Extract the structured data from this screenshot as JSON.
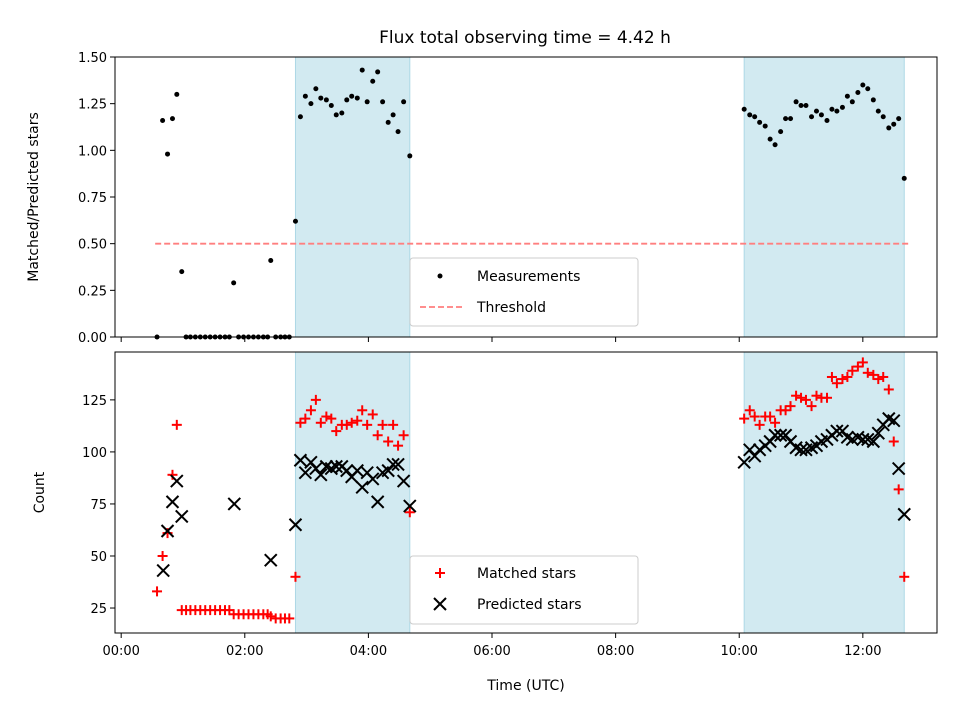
{
  "chart_data": [
    {
      "type": "scatter",
      "title": "Flux total observing time = 4.42 h",
      "ylabel": "Matched/Predicted stars",
      "ylim": [
        0,
        1.5
      ],
      "yticks": [
        0.0,
        0.25,
        0.5,
        0.75,
        1.0,
        1.25,
        1.5
      ],
      "yticklabels": [
        "0.00",
        "0.25",
        "0.50",
        "0.75",
        "1.00",
        "1.25",
        "1.50"
      ],
      "legend_position": "bottom-center",
      "threshold": {
        "value": 0.5,
        "x_start": 0.55,
        "x_end": 12.75,
        "color": "#ff7f7f",
        "name": "Threshold"
      },
      "highlight_color": "#add8e6",
      "highlights": [
        [
          2.82,
          4.67
        ],
        [
          10.08,
          12.67
        ]
      ],
      "series": [
        {
          "name": "Measurements",
          "color": "#000000",
          "marker": "dot",
          "x": [
            0.58,
            0.67,
            0.75,
            0.83,
            0.9,
            0.98,
            1.05,
            1.12,
            1.2,
            1.28,
            1.36,
            1.44,
            1.52,
            1.6,
            1.68,
            1.75,
            1.82,
            1.9,
            1.98,
            2.06,
            2.14,
            2.22,
            2.3,
            2.37,
            2.42,
            2.5,
            2.58,
            2.65,
            2.72,
            2.82,
            2.9,
            2.98,
            3.07,
            3.15,
            3.23,
            3.32,
            3.4,
            3.48,
            3.57,
            3.65,
            3.73,
            3.82,
            3.9,
            3.98,
            4.07,
            4.15,
            4.23,
            4.32,
            4.4,
            4.48,
            4.57,
            4.67,
            10.08,
            10.17,
            10.25,
            10.33,
            10.42,
            10.5,
            10.58,
            10.67,
            10.75,
            10.83,
            10.92,
            11.0,
            11.08,
            11.17,
            11.25,
            11.33,
            11.42,
            11.5,
            11.58,
            11.67,
            11.75,
            11.83,
            11.92,
            12.0,
            12.08,
            12.17,
            12.25,
            12.33,
            12.42,
            12.5,
            12.58,
            12.67
          ],
          "y": [
            0.0,
            1.16,
            0.98,
            1.17,
            1.3,
            0.35,
            0.0,
            0.0,
            0.0,
            0.0,
            0.0,
            0.0,
            0.0,
            0.0,
            0.0,
            0.0,
            0.29,
            0.0,
            0.0,
            0.0,
            0.0,
            0.0,
            0.0,
            0.0,
            0.41,
            0.0,
            0.0,
            0.0,
            0.0,
            0.62,
            1.18,
            1.29,
            1.25,
            1.33,
            1.28,
            1.27,
            1.24,
            1.19,
            1.2,
            1.27,
            1.29,
            1.28,
            1.43,
            1.26,
            1.37,
            1.42,
            1.26,
            1.15,
            1.19,
            1.1,
            1.26,
            0.97,
            1.22,
            1.19,
            1.18,
            1.15,
            1.13,
            1.06,
            1.03,
            1.1,
            1.17,
            1.17,
            1.26,
            1.24,
            1.24,
            1.18,
            1.21,
            1.19,
            1.16,
            1.22,
            1.21,
            1.23,
            1.29,
            1.26,
            1.31,
            1.35,
            1.33,
            1.27,
            1.21,
            1.18,
            1.12,
            1.14,
            1.17,
            0.85
          ]
        }
      ]
    },
    {
      "type": "scatter",
      "ylabel": "Count",
      "xlabel": "Time (UTC)",
      "ylim": [
        13,
        148
      ],
      "yticks": [
        25,
        50,
        75,
        100,
        125
      ],
      "yticklabels": [
        "25",
        "50",
        "75",
        "100",
        "125"
      ],
      "xlim": [
        -0.1,
        13.2
      ],
      "xticks": [
        0,
        2,
        4,
        6,
        8,
        10,
        12
      ],
      "xticklabels": [
        "00:00",
        "02:00",
        "04:00",
        "06:00",
        "08:00",
        "10:00",
        "12:00"
      ],
      "legend_position": "bottom-center",
      "highlight_color": "#add8e6",
      "highlights": [
        [
          2.82,
          4.67
        ],
        [
          10.08,
          12.67
        ]
      ],
      "series": [
        {
          "name": "Matched stars",
          "color": "#ff0000",
          "marker": "plus",
          "x": [
            0.58,
            0.67,
            0.75,
            0.83,
            0.9,
            0.98,
            1.05,
            1.12,
            1.2,
            1.28,
            1.36,
            1.44,
            1.52,
            1.6,
            1.68,
            1.75,
            1.82,
            1.9,
            1.98,
            2.06,
            2.14,
            2.22,
            2.3,
            2.37,
            2.42,
            2.5,
            2.58,
            2.65,
            2.72,
            2.82,
            2.9,
            2.98,
            3.07,
            3.15,
            3.23,
            3.32,
            3.4,
            3.48,
            3.57,
            3.65,
            3.73,
            3.82,
            3.9,
            3.98,
            4.07,
            4.15,
            4.23,
            4.32,
            4.4,
            4.48,
            4.57,
            4.67,
            10.08,
            10.17,
            10.25,
            10.33,
            10.42,
            10.5,
            10.58,
            10.67,
            10.75,
            10.83,
            10.92,
            11.0,
            11.08,
            11.17,
            11.25,
            11.33,
            11.42,
            11.5,
            11.58,
            11.67,
            11.75,
            11.83,
            11.92,
            12.0,
            12.08,
            12.17,
            12.25,
            12.33,
            12.42,
            12.5,
            12.58,
            12.67
          ],
          "y": [
            33,
            50,
            61,
            89,
            113,
            24,
            24,
            24,
            24,
            24,
            24,
            24,
            24,
            24,
            24,
            24,
            22,
            22,
            22,
            22,
            22,
            22,
            22,
            22,
            21,
            20,
            20,
            20,
            20,
            40,
            114,
            116,
            120,
            125,
            114,
            117,
            116,
            110,
            113,
            113,
            114,
            115,
            120,
            113,
            118,
            108,
            113,
            105,
            113,
            103,
            108,
            71,
            116,
            120,
            117,
            113,
            117,
            117,
            114,
            120,
            120,
            122,
            127,
            126,
            125,
            122,
            127,
            126,
            126,
            136,
            133,
            135,
            136,
            139,
            141,
            143,
            138,
            137,
            135,
            136,
            130,
            105,
            82,
            40
          ]
        },
        {
          "name": "Predicted stars",
          "color": "#000000",
          "marker": "x",
          "x": [
            0.68,
            0.75,
            0.83,
            0.9,
            0.98,
            1.83,
            2.42,
            2.82,
            2.9,
            2.98,
            3.07,
            3.15,
            3.23,
            3.32,
            3.4,
            3.48,
            3.57,
            3.65,
            3.73,
            3.82,
            3.9,
            3.98,
            4.07,
            4.15,
            4.23,
            4.32,
            4.4,
            4.48,
            4.57,
            4.67,
            10.08,
            10.17,
            10.25,
            10.33,
            10.42,
            10.5,
            10.58,
            10.67,
            10.75,
            10.83,
            10.92,
            11.0,
            11.08,
            11.17,
            11.25,
            11.33,
            11.42,
            11.5,
            11.58,
            11.67,
            11.75,
            11.83,
            11.92,
            12.0,
            12.08,
            12.17,
            12.25,
            12.33,
            12.42,
            12.5,
            12.58,
            12.67
          ],
          "y": [
            43,
            62,
            76,
            86,
            69,
            75,
            48,
            65,
            96,
            90,
            95,
            92,
            89,
            93,
            92,
            93,
            93,
            91,
            88,
            91,
            83,
            90,
            87,
            76,
            90,
            91,
            94,
            94,
            86,
            74,
            95,
            101,
            98,
            101,
            103,
            105,
            108,
            108,
            108,
            105,
            102,
            101,
            101,
            102,
            103,
            105,
            106,
            108,
            110,
            110,
            107,
            106,
            107,
            106,
            106,
            105,
            109,
            113,
            116,
            115,
            92,
            70
          ]
        }
      ]
    }
  ]
}
